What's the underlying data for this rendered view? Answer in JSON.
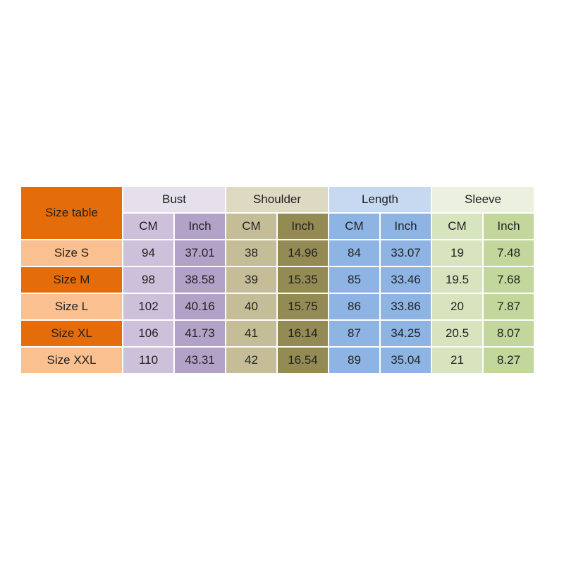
{
  "table": {
    "title": "Size table",
    "groups": [
      {
        "name": "Bust",
        "units": [
          "CM",
          "Inch"
        ]
      },
      {
        "name": "Shoulder",
        "units": [
          "CM",
          "Inch"
        ]
      },
      {
        "name": "Length",
        "units": [
          "CM",
          "Inch"
        ]
      },
      {
        "name": "Sleeve",
        "units": [
          "CM",
          "Inch"
        ]
      }
    ],
    "rows": [
      {
        "size": "Size S",
        "values": [
          94,
          37.01,
          38,
          14.96,
          84,
          33.07,
          19,
          7.48
        ]
      },
      {
        "size": "Size M",
        "values": [
          98,
          38.58,
          39,
          15.35,
          85,
          33.46,
          19.5,
          7.68
        ]
      },
      {
        "size": "Size L",
        "values": [
          102,
          40.16,
          40,
          15.75,
          86,
          33.86,
          20,
          7.87
        ]
      },
      {
        "size": "Size XL",
        "values": [
          106,
          41.73,
          41,
          16.14,
          87,
          34.25,
          20.5,
          8.07
        ]
      },
      {
        "size": "Size XXL",
        "values": [
          110,
          43.31,
          42,
          16.54,
          89,
          35.04,
          21,
          8.27
        ]
      }
    ]
  }
}
